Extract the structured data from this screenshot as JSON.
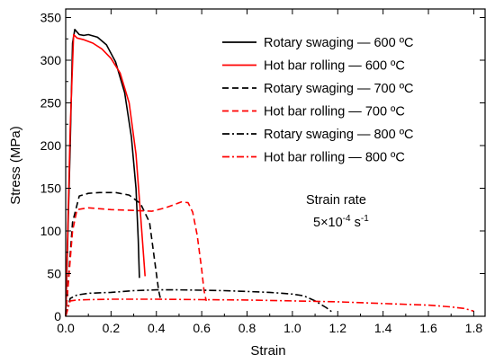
{
  "chart_data": {
    "type": "line",
    "title": "",
    "xlabel": "Strain",
    "ylabel": "Stress (MPa)",
    "xlim": [
      0.0,
      1.85
    ],
    "ylim": [
      0,
      360
    ],
    "x_ticks": [
      "0.0",
      "0.2",
      "0.4",
      "0.6",
      "0.8",
      "1.0",
      "1.2",
      "1.4",
      "1.6",
      "1.8"
    ],
    "y_ticks": [
      "0",
      "50",
      "100",
      "150",
      "200",
      "250",
      "300",
      "350"
    ],
    "legend_position": "top-right",
    "annotation": {
      "line1": "Strain rate",
      "line2_base": "5×10",
      "line2_exp1": "-4",
      "line2_unit": " s",
      "line2_exp2": "-1"
    },
    "series": [
      {
        "name": "Rotary swaging — 600 ºC",
        "color": "#000000",
        "dash": "solid",
        "points": [
          [
            0.0,
            0
          ],
          [
            0.02,
            200
          ],
          [
            0.03,
            320
          ],
          [
            0.04,
            336
          ],
          [
            0.06,
            330
          ],
          [
            0.08,
            329
          ],
          [
            0.1,
            330
          ],
          [
            0.14,
            327
          ],
          [
            0.18,
            318
          ],
          [
            0.22,
            298
          ],
          [
            0.26,
            262
          ],
          [
            0.29,
            210
          ],
          [
            0.31,
            150
          ],
          [
            0.32,
            90
          ],
          [
            0.325,
            45
          ]
        ]
      },
      {
        "name": "Hot bar rolling — 600 ºC",
        "color": "#ff0000",
        "dash": "solid",
        "points": [
          [
            0.0,
            0
          ],
          [
            0.02,
            220
          ],
          [
            0.035,
            330
          ],
          [
            0.05,
            326
          ],
          [
            0.08,
            324
          ],
          [
            0.12,
            320
          ],
          [
            0.16,
            313
          ],
          [
            0.2,
            302
          ],
          [
            0.24,
            285
          ],
          [
            0.28,
            250
          ],
          [
            0.31,
            190
          ],
          [
            0.33,
            120
          ],
          [
            0.35,
            47
          ]
        ]
      },
      {
        "name": "Rotary swaging — 700 ºC",
        "color": "#000000",
        "dash": "dashed",
        "points": [
          [
            0.0,
            0
          ],
          [
            0.03,
            110
          ],
          [
            0.06,
            141
          ],
          [
            0.1,
            144
          ],
          [
            0.15,
            145
          ],
          [
            0.22,
            145
          ],
          [
            0.28,
            142
          ],
          [
            0.33,
            132
          ],
          [
            0.37,
            110
          ],
          [
            0.39,
            70
          ],
          [
            0.41,
            30
          ],
          [
            0.42,
            18
          ]
        ]
      },
      {
        "name": "Hot bar rolling — 700 ºC",
        "color": "#ff0000",
        "dash": "dashed",
        "points": [
          [
            0.0,
            0
          ],
          [
            0.03,
            100
          ],
          [
            0.05,
            125
          ],
          [
            0.1,
            127
          ],
          [
            0.2,
            125
          ],
          [
            0.3,
            124
          ],
          [
            0.38,
            123
          ],
          [
            0.44,
            127
          ],
          [
            0.48,
            131
          ],
          [
            0.51,
            134
          ],
          [
            0.54,
            133
          ],
          [
            0.56,
            122
          ],
          [
            0.58,
            95
          ],
          [
            0.6,
            55
          ],
          [
            0.61,
            30
          ],
          [
            0.62,
            18
          ]
        ]
      },
      {
        "name": "Rotary swaging — 800 ºC",
        "color": "#000000",
        "dash": "dashdot",
        "points": [
          [
            0.0,
            0
          ],
          [
            0.02,
            21
          ],
          [
            0.05,
            25
          ],
          [
            0.1,
            27
          ],
          [
            0.2,
            28
          ],
          [
            0.3,
            30
          ],
          [
            0.4,
            31
          ],
          [
            0.5,
            31
          ],
          [
            0.6,
            30.5
          ],
          [
            0.7,
            30
          ],
          [
            0.8,
            29
          ],
          [
            0.9,
            28
          ],
          [
            1.0,
            26
          ],
          [
            1.05,
            24
          ],
          [
            1.1,
            18
          ],
          [
            1.15,
            10
          ],
          [
            1.18,
            4
          ]
        ]
      },
      {
        "name": "Hot bar rolling — 800 ºC",
        "color": "#ff0000",
        "dash": "dashdot",
        "points": [
          [
            0.0,
            0
          ],
          [
            0.02,
            18
          ],
          [
            0.05,
            19
          ],
          [
            0.1,
            19.5
          ],
          [
            0.2,
            20
          ],
          [
            0.4,
            20
          ],
          [
            0.6,
            19.5
          ],
          [
            0.8,
            19
          ],
          [
            1.0,
            18
          ],
          [
            1.2,
            17
          ],
          [
            1.4,
            15
          ],
          [
            1.6,
            13
          ],
          [
            1.7,
            11
          ],
          [
            1.76,
            9
          ],
          [
            1.8,
            6
          ]
        ]
      }
    ]
  }
}
